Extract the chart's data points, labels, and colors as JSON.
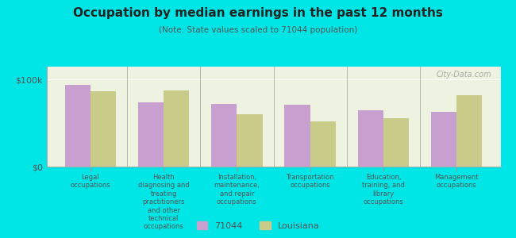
{
  "title": "Occupation by median earnings in the past 12 months",
  "subtitle": "(Note: State values scaled to 71044 population)",
  "categories": [
    "Legal\noccupations",
    "Health\ndiagnosing and\ntreating\npractitioners\nand other\ntechnical\noccupations",
    "Installation,\nmaintenance,\nand repair\noccupations",
    "Transportation\noccupations",
    "Education,\ntraining, and\nlibrary\noccupations",
    "Management\noccupations"
  ],
  "values_71044": [
    94000,
    74000,
    72000,
    71000,
    65000,
    63000
  ],
  "values_louisiana": [
    87000,
    88000,
    60000,
    52000,
    56000,
    82000
  ],
  "bar_color_71044": "#c8a0d0",
  "bar_color_louisiana": "#c8cc88",
  "background_color": "#00e5e5",
  "plot_bg_color": "#eef2e0",
  "ylabel_ticks": [
    "$0",
    "$100k"
  ],
  "ytick_values": [
    0,
    100000
  ],
  "ylim": [
    0,
    115000
  ],
  "legend_labels": [
    "71044",
    "Louisiana"
  ],
  "watermark": "City-Data.com",
  "bar_width": 0.35
}
